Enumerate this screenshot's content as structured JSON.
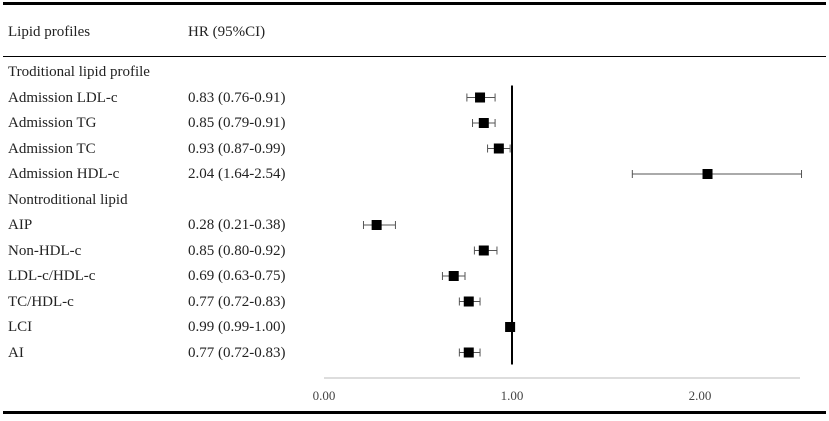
{
  "header": {
    "col1": "Lipid profiles",
    "col2": "HR (95%CI)"
  },
  "chart_data": {
    "type": "forest",
    "xlim": [
      0,
      2.5
    ],
    "reference_line": 1.0,
    "x_ticks": [
      "0.00",
      "1.00",
      "2.00"
    ],
    "x_tick_values": [
      0,
      1,
      2
    ],
    "marker_color": "#000000",
    "rows": [
      {
        "kind": "group",
        "label": "Troditional lipid profile"
      },
      {
        "kind": "item",
        "label": "Admission LDL-c",
        "text": "0.83 (0.76-0.91)",
        "hr": 0.83,
        "lo": 0.76,
        "hi": 0.91
      },
      {
        "kind": "item",
        "label": "Admission TG",
        "text": "0.85 (0.79-0.91)",
        "hr": 0.85,
        "lo": 0.79,
        "hi": 0.91
      },
      {
        "kind": "item",
        "label": "Admission TC",
        "text": "0.93 (0.87-0.99)",
        "hr": 0.93,
        "lo": 0.87,
        "hi": 0.99
      },
      {
        "kind": "item",
        "label": "Admission HDL-c",
        "text": "2.04 (1.64-2.54)",
        "hr": 2.04,
        "lo": 1.64,
        "hi": 2.54
      },
      {
        "kind": "group",
        "label": "Nontroditional lipid"
      },
      {
        "kind": "item",
        "label": "AIP",
        "text": "0.28 (0.21-0.38)",
        "hr": 0.28,
        "lo": 0.21,
        "hi": 0.38
      },
      {
        "kind": "item",
        "label": "Non-HDL-c",
        "text": "0.85 (0.80-0.92)",
        "hr": 0.85,
        "lo": 0.8,
        "hi": 0.92
      },
      {
        "kind": "item",
        "label": "LDL-c/HDL-c",
        "text": "0.69 (0.63-0.75)",
        "hr": 0.69,
        "lo": 0.63,
        "hi": 0.75
      },
      {
        "kind": "item",
        "label": "TC/HDL-c",
        "text": "0.77 (0.72-0.83)",
        "hr": 0.77,
        "lo": 0.72,
        "hi": 0.83
      },
      {
        "kind": "item",
        "label": "LCI",
        "text": "0.99 (0.99-1.00)",
        "hr": 0.99,
        "lo": 0.99,
        "hi": 1.0
      },
      {
        "kind": "item",
        "label": "AI",
        "text": "0.77 (0.72-0.83)",
        "hr": 0.77,
        "lo": 0.72,
        "hi": 0.83
      }
    ]
  }
}
